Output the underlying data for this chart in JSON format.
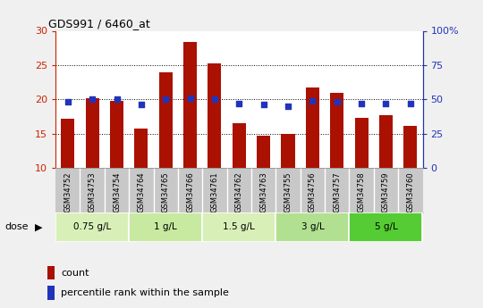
{
  "title": "GDS991 / 6460_at",
  "samples": [
    "GSM34752",
    "GSM34753",
    "GSM34754",
    "GSM34764",
    "GSM34765",
    "GSM34766",
    "GSM34761",
    "GSM34762",
    "GSM34763",
    "GSM34755",
    "GSM34756",
    "GSM34757",
    "GSM34758",
    "GSM34759",
    "GSM34760"
  ],
  "counts": [
    17.2,
    20.2,
    19.8,
    15.7,
    24.0,
    28.4,
    25.2,
    16.5,
    14.7,
    15.0,
    21.7,
    20.9,
    17.3,
    17.7,
    16.1
  ],
  "percentile_ranks": [
    48,
    50,
    50,
    46,
    50,
    51,
    50,
    47,
    46,
    45,
    49,
    48,
    47,
    47,
    47
  ],
  "y_min": 10,
  "y_max": 30,
  "y_ticks": [
    10,
    15,
    20,
    25,
    30
  ],
  "y2_ticks": [
    0,
    25,
    50,
    75,
    100
  ],
  "dose_groups": [
    {
      "label": "0.75 g/L",
      "start": 0,
      "end": 3,
      "color": "#d8f0b8"
    },
    {
      "label": "1 g/L",
      "start": 3,
      "end": 6,
      "color": "#c8eaa0"
    },
    {
      "label": "1.5 g/L",
      "start": 6,
      "end": 9,
      "color": "#d8f0b8"
    },
    {
      "label": "3 g/L",
      "start": 9,
      "end": 12,
      "color": "#b0e090"
    },
    {
      "label": "5 g/L",
      "start": 12,
      "end": 15,
      "color": "#55cc33"
    }
  ],
  "bar_color": "#aa1100",
  "dot_color": "#2233bb",
  "grid_color": "#000000",
  "bg_plot": "#ffffff",
  "bg_xtick": "#c8c8c8",
  "left_tick_color": "#cc2200",
  "right_tick_color": "#2233bb",
  "bar_bottom": 10,
  "dot_size": 22,
  "bar_width": 0.55
}
